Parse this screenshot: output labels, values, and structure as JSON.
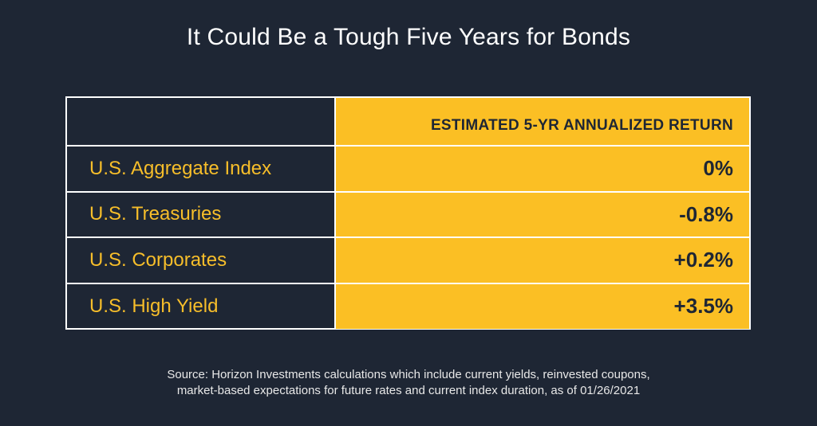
{
  "title": "It Could Be a Tough Five Years for Bonds",
  "chart_data": {
    "type": "table",
    "columns": [
      "",
      "ESTIMATED 5-YR ANNUALIZED RETURN"
    ],
    "rows": [
      {
        "label": "U.S. Aggregate Index",
        "value": "0%"
      },
      {
        "label": "U.S. Treasuries",
        "value": "-0.8%"
      },
      {
        "label": "U.S. Corporates",
        "value": "+0.2%"
      },
      {
        "label": "U.S. High Yield",
        "value": "+3.5%"
      }
    ]
  },
  "source": {
    "line1": "Source: Horizon Investments calculations which include current yields, reinvested coupons,",
    "line2": "market-based expectations for future rates and current index duration, as of 01/26/2021"
  },
  "colors": {
    "background": "#1e2634",
    "accent": "#fbbf24",
    "label_text": "#f7be2a",
    "border": "#ffffff"
  }
}
